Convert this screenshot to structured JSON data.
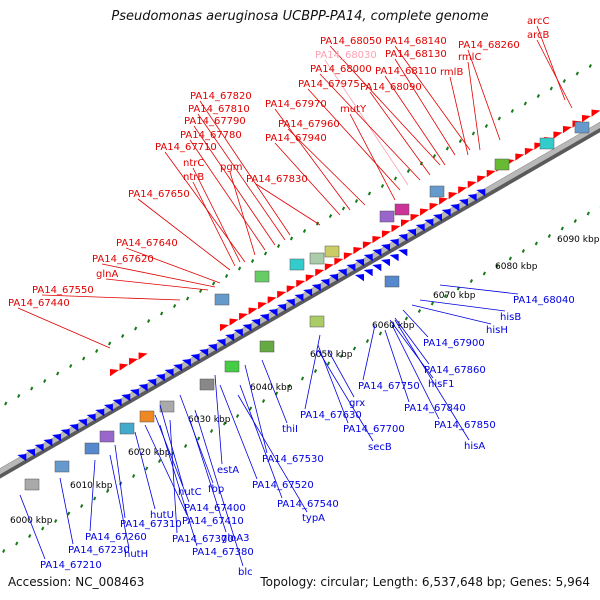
{
  "title": "Pseudomonas aeruginosa UCBPP-PA14, complete genome",
  "footer": {
    "accession": "Accession: NC_008463",
    "topology": "Topology: circular; Length: 6,537,648 bp; Genes: 5,964"
  },
  "colors": {
    "forward_label": "#e00000",
    "reverse_label": "#0000e0",
    "forward_arrow": "#ff0000",
    "reverse_arrow": "#0000ff",
    "dim_label": "#ff9fb0",
    "tick": "#1a7a1a",
    "backbone": "#9a9a9a"
  },
  "scale_labels": [
    "6000 kbp",
    "6010 kbp",
    "6020 kbp",
    "6030 kbp",
    "6040 kbp",
    "6050 kbp",
    "6060 kbp",
    "6070 kbp",
    "6080 kbp",
    "6090 kbp"
  ],
  "forward_labels": [
    "arcC",
    "arcB",
    "PA14_68260",
    "PA14_68140",
    "PA14_68050",
    "rmlC",
    "PA14_68130",
    "PA14_68030",
    "rmlB",
    "PA14_68000",
    "PA14_68110",
    "PA14_67975",
    "PA14_68090",
    "PA14_67820",
    "mutY",
    "PA14_67810",
    "PA14_67970",
    "PA14_67790",
    "PA14_67960",
    "PA14_67780",
    "PA14_67940",
    "PA14_67710",
    "ntrC",
    "pgm",
    "ntrB",
    "PA14_67830",
    "PA14_67650",
    "PA14_67640",
    "PA14_67620",
    "glnA",
    "PA14_67550",
    "PA14_67440"
  ],
  "reverse_labels": [
    "PA14_68040",
    "hisB",
    "hisH",
    "PA14_67900",
    "PA14_67860",
    "hisF1",
    "PA14_67750",
    "PA14_67840",
    "PA14_67850",
    "hisA",
    "grx",
    "PA14_67630",
    "PA14_67700",
    "secB",
    "thiI",
    "PA14_67530",
    "estA",
    "PA14_67520",
    "fbp",
    "hutC",
    "PA14_67540",
    "typA",
    "PA14_67400",
    "PA14_67410",
    "hutU",
    "PA14_67310",
    "gloA3",
    "PA14_67370",
    "PA14_67260",
    "hutH",
    "PA14_67380",
    "PA14_67230",
    "blc",
    "PA14_67210"
  ]
}
